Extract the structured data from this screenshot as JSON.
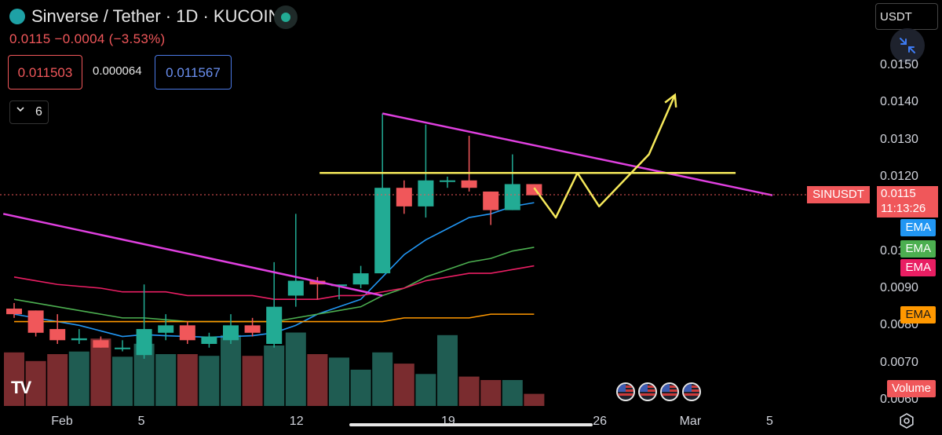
{
  "header": {
    "title": "Sinverse / Tether · 1D · KUCOIN",
    "change": "0.0115 −0.0004 (−3.53%)",
    "sell_price": "0.011503",
    "spread": "0.000064",
    "buy_price": "0.011567",
    "indicator_count": "6",
    "currency": "USDT"
  },
  "axis": {
    "price_labels": [
      "0.0150",
      "0.0140",
      "0.0130",
      "0.0120",
      "0.0100",
      "0.0090",
      "0.0080",
      "0.0070",
      "0.0060"
    ],
    "date_labels": [
      "Feb",
      "5",
      "12",
      "19",
      "26",
      "Mar",
      "5"
    ]
  },
  "tags": {
    "symbol": "SINUSDT",
    "last_price": "0.0115",
    "countdown": "11:13:26",
    "ema1": "EMA",
    "ema2": "EMA",
    "ema3": "EMA",
    "ema4": "EMA",
    "volume": "Volume"
  },
  "colors": {
    "up": "#22ab94",
    "down": "#f0575a",
    "trendline": "#e040e0",
    "drawing": "#f5e85a",
    "ema_fast": "#2196f3",
    "ema_mid": "#4caf50",
    "ema_slow": "#e91e63",
    "ema_long": "#ff9800"
  },
  "chart_data": {
    "type": "candlestick",
    "symbol": "SINUSDT",
    "ylim": [
      0.0058,
      0.0157
    ],
    "ohlc": [
      {
        "o": 0.00845,
        "h": 0.0086,
        "l": 0.0082,
        "c": 0.0083
      },
      {
        "o": 0.0084,
        "h": 0.0084,
        "l": 0.0077,
        "c": 0.0078
      },
      {
        "o": 0.0079,
        "h": 0.0083,
        "l": 0.0075,
        "c": 0.0076
      },
      {
        "o": 0.0076,
        "h": 0.0079,
        "l": 0.0075,
        "c": 0.00765
      },
      {
        "o": 0.0076,
        "h": 0.0077,
        "l": 0.0074,
        "c": 0.0074
      },
      {
        "o": 0.0074,
        "h": 0.0076,
        "l": 0.0073,
        "c": 0.0074
      },
      {
        "o": 0.0072,
        "h": 0.0091,
        "l": 0.0071,
        "c": 0.0079
      },
      {
        "o": 0.0078,
        "h": 0.0083,
        "l": 0.0076,
        "c": 0.008
      },
      {
        "o": 0.008,
        "h": 0.0081,
        "l": 0.0075,
        "c": 0.0076
      },
      {
        "o": 0.0075,
        "h": 0.0078,
        "l": 0.0074,
        "c": 0.0077
      },
      {
        "o": 0.0076,
        "h": 0.0083,
        "l": 0.0075,
        "c": 0.008
      },
      {
        "o": 0.008,
        "h": 0.0082,
        "l": 0.0077,
        "c": 0.0078
      },
      {
        "o": 0.0075,
        "h": 0.0097,
        "l": 0.0074,
        "c": 0.0085
      },
      {
        "o": 0.0088,
        "h": 0.011,
        "l": 0.0085,
        "c": 0.0092
      },
      {
        "o": 0.0092,
        "h": 0.0093,
        "l": 0.0087,
        "c": 0.0091
      },
      {
        "o": 0.0091,
        "h": 0.0091,
        "l": 0.0087,
        "c": 0.0091
      },
      {
        "o": 0.0091,
        "h": 0.0096,
        "l": 0.009,
        "c": 0.0094
      },
      {
        "o": 0.0094,
        "h": 0.0137,
        "l": 0.0094,
        "c": 0.0117
      },
      {
        "o": 0.0117,
        "h": 0.0119,
        "l": 0.011,
        "c": 0.0112
      },
      {
        "o": 0.0112,
        "h": 0.0134,
        "l": 0.0109,
        "c": 0.0119
      },
      {
        "o": 0.0119,
        "h": 0.012,
        "l": 0.0117,
        "c": 0.0119
      },
      {
        "o": 0.0119,
        "h": 0.0131,
        "l": 0.0116,
        "c": 0.0117
      },
      {
        "o": 0.0116,
        "h": 0.0116,
        "l": 0.0107,
        "c": 0.0111
      },
      {
        "o": 0.0111,
        "h": 0.0126,
        "l": 0.0111,
        "c": 0.0118
      },
      {
        "o": 0.0118,
        "h": 0.0118,
        "l": 0.0115,
        "c": 0.0115
      }
    ],
    "volume": [
      0.62,
      0.52,
      0.6,
      0.63,
      0.78,
      0.57,
      0.72,
      0.6,
      0.6,
      0.58,
      0.82,
      0.58,
      0.7,
      0.85,
      0.6,
      0.56,
      0.42,
      0.62,
      0.49,
      0.37,
      0.82,
      0.34,
      0.3,
      0.3,
      0.14
    ],
    "ema": [
      {
        "name": "EMA",
        "color": "#2196f3",
        "values": [
          0.0083,
          0.0082,
          0.0081,
          0.008,
          0.00785,
          0.0077,
          0.00775,
          0.00772,
          0.0077,
          0.00768,
          0.0077,
          0.00772,
          0.0078,
          0.008,
          0.0083,
          0.0085,
          0.0087,
          0.0093,
          0.0099,
          0.0103,
          0.0106,
          0.0109,
          0.011,
          0.0112,
          0.0113
        ]
      },
      {
        "name": "EMA",
        "color": "#4caf50",
        "values": [
          0.0087,
          0.0086,
          0.0085,
          0.0084,
          0.0083,
          0.0082,
          0.0082,
          0.00815,
          0.0081,
          0.0081,
          0.0081,
          0.0081,
          0.0081,
          0.0082,
          0.0083,
          0.0084,
          0.0085,
          0.0088,
          0.009,
          0.0093,
          0.0095,
          0.0097,
          0.0098,
          0.01,
          0.0101
        ]
      },
      {
        "name": "EMA",
        "color": "#e91e63",
        "values": [
          0.0093,
          0.0092,
          0.0091,
          0.00905,
          0.009,
          0.0089,
          0.0089,
          0.0089,
          0.0088,
          0.0088,
          0.0088,
          0.0088,
          0.0087,
          0.0087,
          0.0087,
          0.0088,
          0.0088,
          0.0089,
          0.009,
          0.0092,
          0.0093,
          0.0094,
          0.0094,
          0.0095,
          0.0096
        ]
      },
      {
        "name": "EMA",
        "color": "#ff9800",
        "values": [
          0.0081,
          0.0081,
          0.0081,
          0.0081,
          0.0081,
          0.0081,
          0.0081,
          0.0081,
          0.0081,
          0.0081,
          0.0081,
          0.0081,
          0.0081,
          0.0081,
          0.0081,
          0.0081,
          0.0081,
          0.0081,
          0.0082,
          0.0082,
          0.0082,
          0.0082,
          0.0083,
          0.0083,
          0.0083
        ]
      }
    ],
    "drawings": {
      "resistance_level": 0.0121,
      "upper_trendline": [
        {
          "i": 17,
          "v": 0.0137
        },
        {
          "i": 35,
          "v": 0.0115
        }
      ],
      "lower_trendline": [
        {
          "i": -0.5,
          "v": 0.011
        },
        {
          "i": 17,
          "v": 0.0088
        }
      ],
      "projection": [
        {
          "i": 24,
          "v": 0.0117
        },
        {
          "i": 25,
          "v": 0.0109
        },
        {
          "i": 26,
          "v": 0.0121
        },
        {
          "i": 27,
          "v": 0.0112
        },
        {
          "i": 29.3,
          "v": 0.0126
        },
        {
          "i": 30.5,
          "v": 0.0142
        }
      ]
    }
  }
}
